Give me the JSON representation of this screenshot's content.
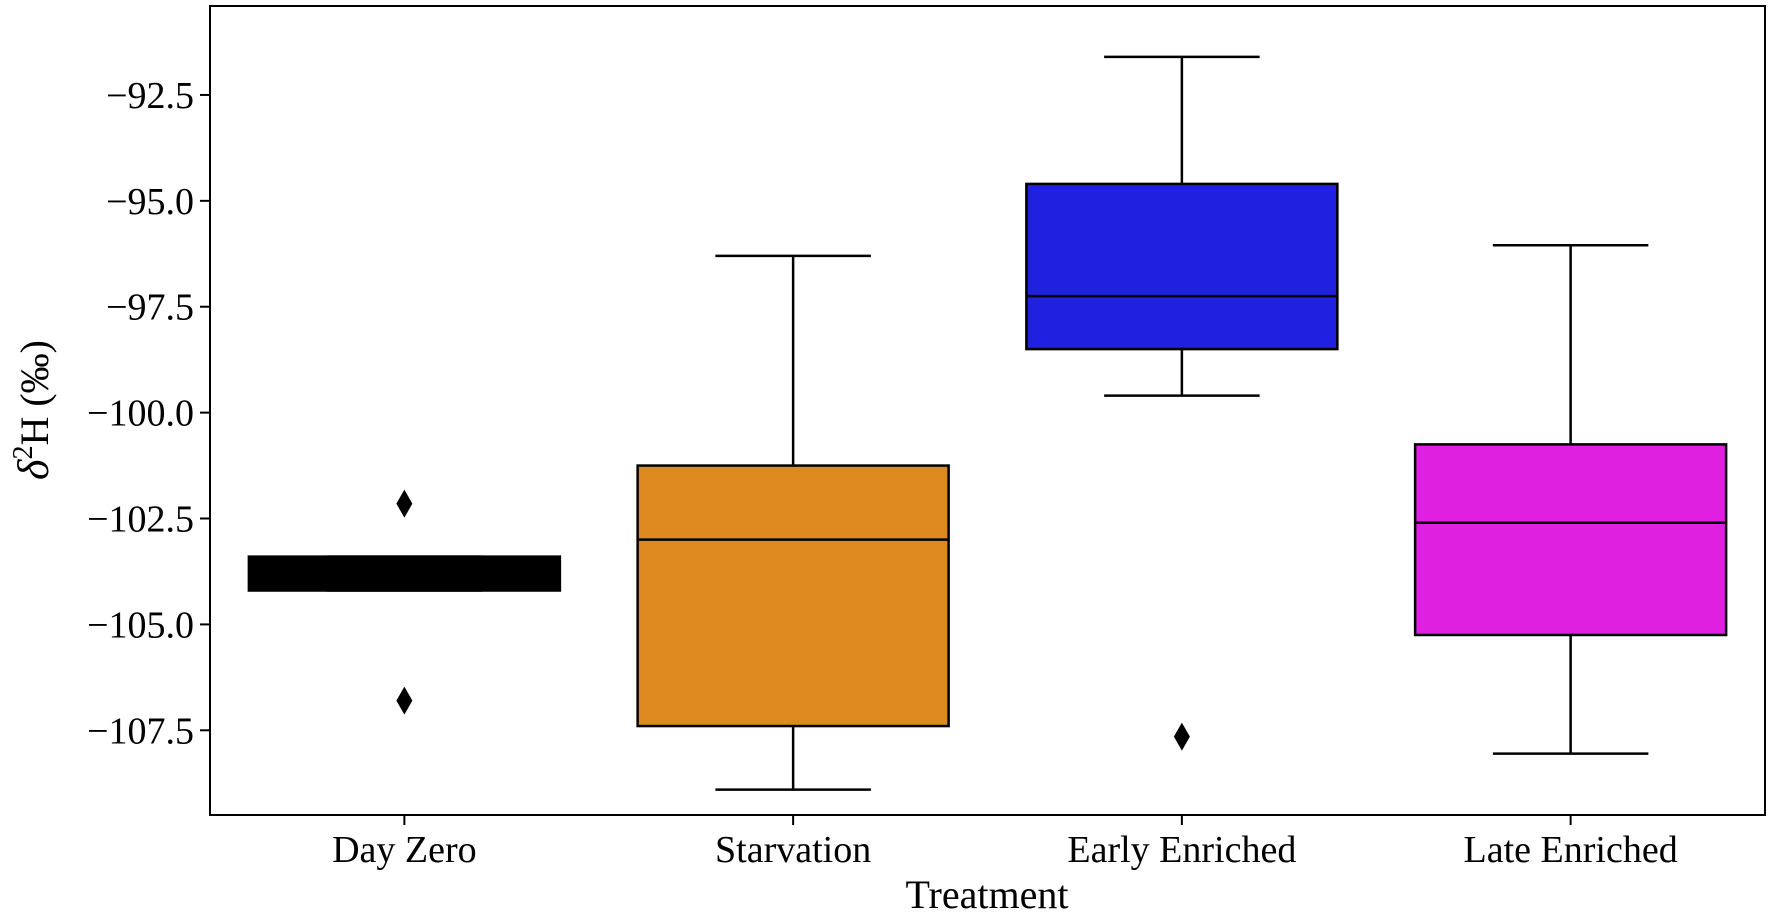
{
  "chart_data": {
    "type": "box",
    "title": "",
    "xlabel": "Treatment",
    "ylabel": {
      "delta": "δ",
      "sup": "2",
      "rest": "H (‰)"
    },
    "ylim": [
      -109.5,
      -90.4
    ],
    "yticks": [
      -92.5,
      -95.0,
      -97.5,
      -100.0,
      -102.5,
      -105.0,
      -107.5
    ],
    "ytick_labels": [
      "−92.5",
      "−95.0",
      "−97.5",
      "−100.0",
      "−102.5",
      "−105.0",
      "−107.5"
    ],
    "categories": [
      "Day Zero",
      "Starvation",
      "Early Enriched",
      "Late Enriched"
    ],
    "boxes": [
      {
        "category": "Day Zero",
        "color": "#000000",
        "whisker_low": -104.2,
        "q1": -104.2,
        "median": -103.8,
        "q3": -103.4,
        "whisker_high": -103.4,
        "outliers": [
          -102.15,
          -106.8
        ]
      },
      {
        "category": "Starvation",
        "color": "#de8820",
        "whisker_low": -108.9,
        "q1": -107.4,
        "median": -103.0,
        "q3": -101.25,
        "whisker_high": -96.3,
        "outliers": []
      },
      {
        "category": "Early Enriched",
        "color": "#2020e0",
        "whisker_low": -99.6,
        "q1": -98.5,
        "median": -97.25,
        "q3": -94.6,
        "whisker_high": -91.6,
        "outliers": [
          -107.65
        ]
      },
      {
        "category": "Late Enriched",
        "color": "#e020e0",
        "whisker_low": -108.05,
        "q1": -105.25,
        "median": -102.6,
        "q3": -100.75,
        "whisker_high": -96.05,
        "outliers": []
      }
    ]
  }
}
